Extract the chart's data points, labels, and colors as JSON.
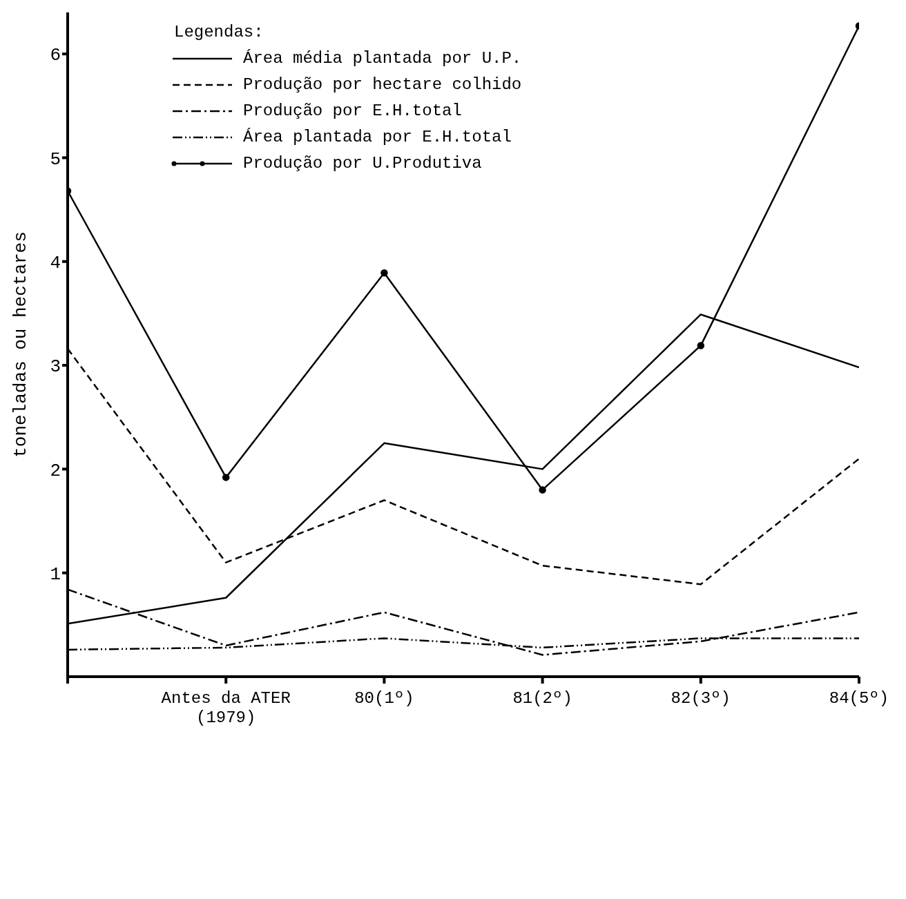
{
  "chart_data": {
    "type": "line",
    "ylabel": "toneladas ou hectares",
    "legend_title": "Legendas:",
    "categories": [
      null,
      "Antes da ATER\n(1979)",
      "80(1º)",
      "81(2º)",
      "82(3º)",
      "84(5º)"
    ],
    "ylim": [
      0,
      6.4
    ],
    "yticks": [
      1,
      2,
      3,
      4,
      5,
      6
    ],
    "legend": "top left",
    "series": [
      {
        "name": "Área média plantada por U.P.",
        "color": "#000000",
        "line_style": "solid",
        "marker": "none",
        "values": [
          0.51,
          0.76,
          2.25,
          2.0,
          3.49,
          2.98
        ]
      },
      {
        "name": "Produção por hectare colhido",
        "color": "#000000",
        "line_style": "dashed",
        "marker": "none",
        "values": [
          3.16,
          1.1,
          1.7,
          1.07,
          0.89,
          2.1
        ]
      },
      {
        "name": "Produção por E.H.total",
        "color": "#000000",
        "line_style": "dashdot",
        "marker": "none",
        "values": [
          0.84,
          0.3,
          0.62,
          0.21,
          0.34,
          0.62
        ]
      },
      {
        "name": "Área plantada por E.H.total",
        "color": "#000000",
        "line_style": "dashdotdot",
        "marker": "none",
        "values": [
          0.26,
          0.28,
          0.37,
          0.28,
          0.37,
          0.37
        ]
      },
      {
        "name": "Produção por U.Produtiva",
        "color": "#000000",
        "line_style": "solid",
        "marker": "circle",
        "values": [
          4.68,
          1.92,
          3.89,
          1.8,
          3.19,
          6.27
        ]
      }
    ]
  }
}
